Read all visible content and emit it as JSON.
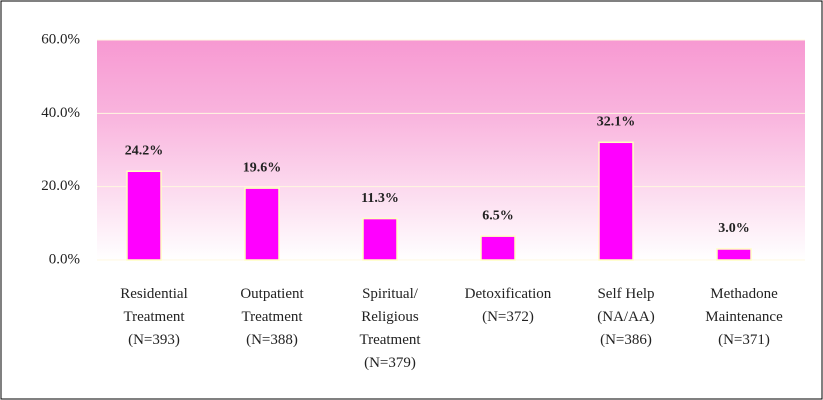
{
  "chart_data": {
    "type": "bar",
    "categories": [
      [
        "Residential",
        "Treatment",
        "(N=393)"
      ],
      [
        "Outpatient",
        "Treatment",
        "(N=388)"
      ],
      [
        "Spiritual/",
        "Religious",
        "Treatment",
        "(N=379)"
      ],
      [
        "Detoxification",
        "(N=372)"
      ],
      [
        "Self Help",
        "(NA/AA)",
        "(N=386)"
      ],
      [
        "Methadone",
        "Maintenance",
        "(N=371)"
      ]
    ],
    "values": [
      24.2,
      19.6,
      11.3,
      6.5,
      32.1,
      3.0
    ],
    "value_labels": [
      "24.2%",
      "19.6%",
      "11.3%",
      "6.5%",
      "32.1%",
      "3.0%"
    ],
    "color": "#ff00ff",
    "ylim": [
      0,
      60
    ],
    "yticks": [
      {
        "value": 0,
        "label": "0.0%"
      },
      {
        "value": 20,
        "label": "20.0%"
      },
      {
        "value": 40,
        "label": "40.0%"
      },
      {
        "value": 60,
        "label": "60.0%"
      }
    ],
    "grid": true
  }
}
